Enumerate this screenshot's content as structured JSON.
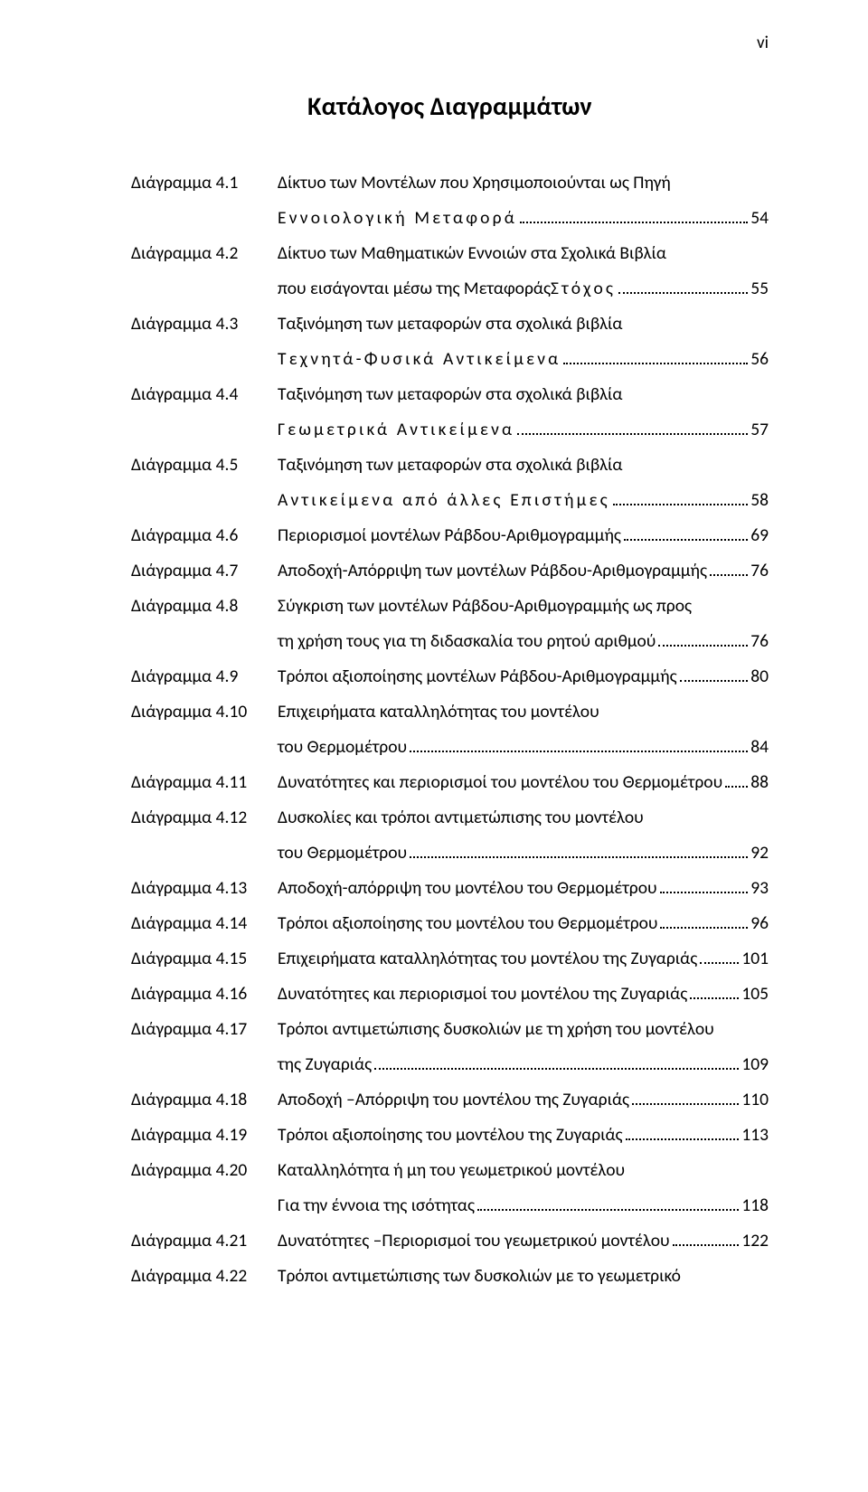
{
  "meta": {
    "page_roman": "vi",
    "background_color": "#ffffff",
    "text_color": "#000000",
    "body_fontsize_pt": 15,
    "heading_fontsize_pt": 21,
    "line_height_em": 2.0,
    "leader_style": "dotted",
    "font_family": "Calibri"
  },
  "heading": "Κατάλογος Διαγραμμάτων",
  "entries": [
    {
      "label": "Διάγραμμα 4.1",
      "text": "Δίκτυο των Μοντέλων που Χρησιμοποιούνται ως Πηγή",
      "cont": "Εννοιολογική Μεταφορά",
      "cont_spaced": true,
      "page": "54"
    },
    {
      "label": "Διάγραμμα 4.2",
      "text": "Δίκτυο των Μαθηματικών Εννοιών  στα Σχολικά Βιβλία",
      "cont_prefix": "που εισάγονται μέσω της Μεταφοράς  ",
      "cont": "Στόχος",
      "cont_spaced": true,
      "page": "55"
    },
    {
      "label": "Διάγραμμα 4.3",
      "text": "Ταξινόμηση των μεταφορών στα σχολικά βιβλία",
      "cont": "Τεχνητά-Φυσικά Αντικείμενα",
      "cont_spaced": true,
      "page": "56"
    },
    {
      "label": "Διάγραμμα 4.4",
      "text": "Ταξινόμηση των μεταφορών στα σχολικά βιβλία",
      "cont": "Γεωμετρικά Αντικείμενα",
      "cont_spaced": true,
      "page": "57"
    },
    {
      "label": "Διάγραμμα 4.5",
      "text": "Ταξινόμηση των μεταφορών στα σχολικά βιβλία",
      "cont_prefix": " ",
      "cont": "Αντικείμενα από άλλες Επιστήμες",
      "cont_spaced": true,
      "page": "58"
    },
    {
      "label": "Διάγραμμα 4.6",
      "text": "Περιορισμοί  μοντέλων Ράβδου-Αριθμογραμμής",
      "page": "69"
    },
    {
      "label": "Διάγραμμα 4.7",
      "text": "Αποδοχή-Απόρριψη των  μοντέλων Ράβδου-Αριθμογραμμής",
      "page": "76"
    },
    {
      "label": "Διάγραμμα 4.8",
      "text": "Σύγκριση των μοντέλων Ράβδου-Αριθμογραμμής ως προς",
      "cont": "τη χρήση τους για τη διδασκαλία του ρητού αριθμού",
      "page": "76"
    },
    {
      "label": "Διάγραμμα 4.9",
      "text": "Τρόποι αξιοποίησης  μοντέλων Ράβδου-Αριθμογραμμής",
      "page": "80"
    },
    {
      "label": "Διάγραμμα 4.10",
      "text": "Επιχειρήματα καταλληλότητας του  μοντέλου",
      "cont_prefix": " ",
      "cont": "του Θερμομέτρου",
      "page": " 84"
    },
    {
      "label": "Διάγραμμα 4.11",
      "text": "Δυνατότητες και περιορισμοί του μοντέλου του Θερμομέτρου ",
      "page": "88"
    },
    {
      "label": "Διάγραμμα 4.12",
      "text": "Δυσκολίες και τρόποι αντιμετώπισης του μοντέλου",
      "cont": "του Θερμομέτρου",
      "page": "92"
    },
    {
      "label": "Διάγραμμα 4.13",
      "text": "Αποδοχή-απόρριψη του μοντέλου του Θερμομέτρου",
      "page": "93"
    },
    {
      "label": "Διάγραμμα 4.14",
      "text": "Τρόποι  αξιοποίησης  του μοντέλου του Θερμομέτρου",
      "page": "96"
    },
    {
      "label": "Διάγραμμα 4.15",
      "text": "Επιχειρήματα καταλληλότητας του  μοντέλου της Ζυγαριάς",
      "page": "101"
    },
    {
      "label": "Διάγραμμα 4.16",
      "text": "Δυνατότητες και περιορισμοί του  μοντέλου της Ζυγαριάς",
      "page": "105"
    },
    {
      "label": "Διάγραμμα 4.17",
      "text": "Τρόποι αντιμετώπισης δυσκολιών  με τη χρήση του  μοντέλου",
      "cont": "της Ζυγαριάς",
      "page": "109"
    },
    {
      "label": "Διάγραμμα 4.18",
      "text": "Αποδοχή –Απόρριψη του  μοντέλου της Ζυγαριάς",
      "page": "110"
    },
    {
      "label": "Διάγραμμα 4.19",
      "text": "Τρόποι αξιοποίησης  του μοντέλου της Ζυγαριάς",
      "page": "113"
    },
    {
      "label": "Διάγραμμα 4.20",
      "text": "Καταλληλότητα ή μη   του  γεωμετρικού μοντέλου",
      "cont": "Για την έννοια της ισότητας",
      "page": "118"
    },
    {
      "label": "Διάγραμμα 4.21",
      "text": "Δυνατότητες –Περιορισμοί  του γεωμετρικού μοντέλου",
      "page": "122"
    },
    {
      "label": "Διάγραμμα 4.22",
      "text": "Τρόποι αντιμετώπισης  των δυσκολιών με το  γεωμετρικό"
    }
  ]
}
